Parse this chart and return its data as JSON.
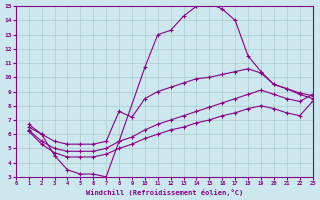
{
  "xlabel": "Windchill (Refroidissement éolien,°C)",
  "bg_color": "#cce8ee",
  "grid_color": "#aacccc",
  "line_color": "#880088",
  "xlim": [
    0,
    23
  ],
  "ylim": [
    3,
    15
  ],
  "xticks": [
    0,
    1,
    2,
    3,
    4,
    5,
    6,
    7,
    8,
    9,
    10,
    11,
    12,
    13,
    14,
    15,
    16,
    17,
    18,
    19,
    20,
    21,
    22,
    23
  ],
  "yticks": [
    3,
    4,
    5,
    6,
    7,
    8,
    9,
    10,
    11,
    12,
    13,
    14,
    15
  ],
  "line1_x": [
    1,
    2,
    3,
    4,
    5,
    6,
    7,
    8,
    10,
    11,
    12,
    13,
    14,
    15,
    16,
    17,
    18,
    19,
    20,
    21,
    22,
    23
  ],
  "line1_y": [
    6.5,
    6.0,
    4.5,
    3.5,
    3.2,
    3.2,
    3.0,
    5.5,
    10.7,
    13.0,
    13.3,
    14.3,
    15.0,
    15.2,
    14.8,
    14.0,
    11.5,
    10.4,
    9.5,
    9.2,
    8.8,
    8.5
  ],
  "line2_x": [
    1,
    2,
    3,
    4,
    5,
    6,
    7,
    8,
    9,
    10,
    11,
    12,
    13,
    14,
    15,
    16,
    17,
    18,
    19,
    20,
    21,
    22,
    23
  ],
  "line2_y": [
    6.7,
    6.0,
    5.5,
    5.3,
    5.3,
    5.3,
    5.5,
    7.6,
    7.2,
    8.5,
    9.0,
    9.3,
    9.6,
    9.9,
    10.0,
    10.2,
    10.4,
    10.6,
    10.3,
    9.5,
    9.2,
    8.9,
    8.7
  ],
  "line3_x": [
    1,
    2,
    3,
    4,
    5,
    6,
    7,
    8,
    9,
    10,
    11,
    12,
    13,
    14,
    15,
    16,
    17,
    18,
    19,
    20,
    21,
    22,
    23
  ],
  "line3_y": [
    6.3,
    5.5,
    5.0,
    4.8,
    4.8,
    4.8,
    5.0,
    5.5,
    5.8,
    6.3,
    6.7,
    7.0,
    7.3,
    7.6,
    7.9,
    8.2,
    8.5,
    8.8,
    9.1,
    8.8,
    8.5,
    8.3,
    8.8
  ],
  "line4_x": [
    1,
    2,
    3,
    4,
    5,
    6,
    7,
    8,
    9,
    10,
    11,
    12,
    13,
    14,
    15,
    16,
    17,
    18,
    19,
    20,
    21,
    22,
    23
  ],
  "line4_y": [
    6.2,
    5.3,
    4.7,
    4.4,
    4.4,
    4.4,
    4.6,
    5.0,
    5.3,
    5.7,
    6.0,
    6.3,
    6.5,
    6.8,
    7.0,
    7.3,
    7.5,
    7.8,
    8.0,
    7.8,
    7.5,
    7.3,
    8.3
  ]
}
